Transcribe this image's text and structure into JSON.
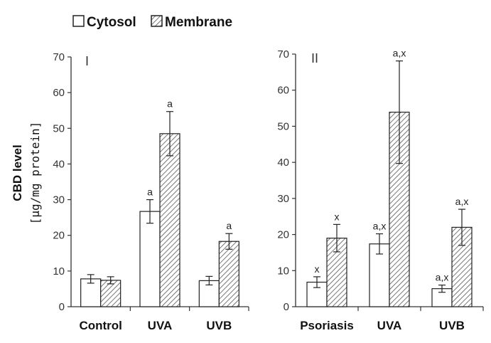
{
  "chart_data": [
    {
      "type": "bar",
      "panel_label": "I",
      "categories": [
        "Control",
        "UVA",
        "UVB"
      ],
      "series": [
        {
          "name": "Cytosol",
          "values": [
            7.8,
            26.7,
            7.3
          ],
          "errors": [
            1.2,
            3.3,
            1.2
          ],
          "annotations": [
            "",
            "a",
            ""
          ]
        },
        {
          "name": "Membrane",
          "values": [
            7.4,
            48.5,
            18.3
          ],
          "errors": [
            1.0,
            6.2,
            2.2
          ],
          "annotations": [
            "",
            "a",
            "a"
          ]
        }
      ],
      "ylim": [
        0,
        70
      ],
      "yticks": [
        "0",
        "10",
        "20",
        "30",
        "40",
        "50",
        "60",
        "70"
      ]
    },
    {
      "type": "bar",
      "panel_label": "II",
      "categories": [
        "Psoriasis",
        "UVA",
        "UVB"
      ],
      "series": [
        {
          "name": "Cytosol",
          "values": [
            6.8,
            17.4,
            5.0
          ],
          "errors": [
            1.5,
            2.8,
            1.0
          ],
          "annotations": [
            "x",
            "a,x",
            "a,x"
          ]
        },
        {
          "name": "Membrane",
          "values": [
            19.0,
            53.9,
            22.0
          ],
          "errors": [
            3.8,
            14.2,
            5.0
          ],
          "annotations": [
            "x",
            "a,x",
            "a,x"
          ]
        }
      ],
      "ylim": [
        0,
        70
      ],
      "yticks": [
        "0",
        "10",
        "20",
        "30",
        "40",
        "50",
        "60",
        "70"
      ]
    }
  ],
  "legend": {
    "items": [
      "Cytosol",
      "Membrane"
    ]
  },
  "ylabel": {
    "line1": "CBD level",
    "line2": "[µg/mg protein]"
  },
  "colors": {
    "axis": "#333333",
    "bar_edge": "#222222",
    "cytosol_fill": "#ffffff",
    "hatch": "#555555"
  }
}
